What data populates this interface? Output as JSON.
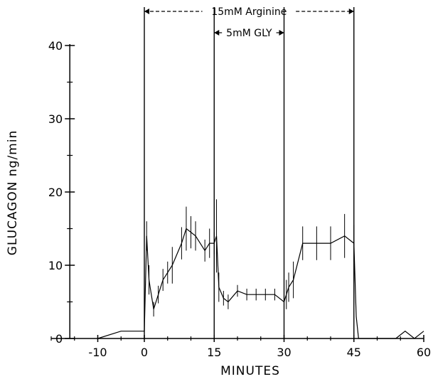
{
  "chart_data": {
    "type": "line",
    "xlabel": "MINUTES",
    "ylabel": "GLUCAGON ng/min",
    "xlim": [
      -20,
      60
    ],
    "ylim": [
      0,
      40
    ],
    "xticks": [
      -10,
      0,
      15,
      30,
      45,
      60
    ],
    "xtick_labels": [
      "-10",
      "0",
      "15",
      "30",
      "45",
      "60"
    ],
    "yticks": [
      0,
      10,
      20,
      30,
      40
    ],
    "ytick_labels": [
      "0",
      "10",
      "20",
      "30",
      "40"
    ],
    "vertical_markers": [
      0,
      15,
      30,
      45
    ],
    "annotations": [
      {
        "text": "15mM Arginine",
        "x_start": 0,
        "x_end": 45
      },
      {
        "text": "5mM GLY",
        "x_start": 15,
        "x_end": 30
      }
    ],
    "series": [
      {
        "x": [
          -10,
          -5,
          0,
          0.5,
          1,
          2,
          3,
          4,
          5,
          6,
          8,
          9,
          10,
          11,
          13,
          14,
          15,
          15.5,
          16,
          17,
          18,
          20,
          22,
          24,
          26,
          28,
          30,
          30.5,
          31,
          32,
          34,
          37,
          40,
          43,
          45,
          45.5,
          46,
          47,
          48,
          50,
          52,
          54,
          56,
          58,
          60
        ],
        "y": [
          0,
          1,
          1,
          14,
          8,
          4,
          6,
          8,
          9,
          10,
          13,
          15,
          14.5,
          14,
          12,
          13,
          13,
          14,
          7,
          5.5,
          5,
          6.5,
          6,
          6,
          6,
          6,
          5,
          6,
          7,
          8,
          13,
          13,
          13,
          14,
          13,
          3,
          0,
          0,
          0,
          0,
          0,
          0,
          1,
          0,
          1
        ],
        "error": [
          0,
          0,
          0,
          2,
          2,
          1,
          1.2,
          1.5,
          1.5,
          2.5,
          2.2,
          3,
          2.2,
          2,
          1.5,
          2,
          1.5,
          5,
          2,
          1,
          1,
          0.8,
          0.8,
          0.8,
          0.8,
          0.8,
          1,
          2,
          2,
          2.5,
          2.3,
          2.3,
          2.3,
          3,
          2.5,
          0,
          0,
          0,
          0,
          0,
          0,
          0,
          0,
          0,
          0
        ]
      }
    ],
    "grid": false,
    "legend": "none"
  }
}
